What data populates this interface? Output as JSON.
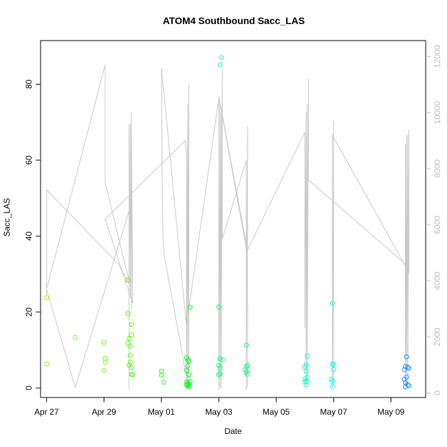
{
  "chart_data": {
    "type": "scatter",
    "title": "ATOM4 Southbound Sacc_LAS",
    "xlabel": "Date",
    "ylabel": "Sacc_LAS",
    "x_unit": "date",
    "xlim": [
      "2025-04-26 19:00",
      "2025-05-10 05:00"
    ],
    "ylim": [
      -2.5,
      91.5
    ],
    "y_ticks": [
      0,
      20,
      40,
      60,
      80
    ],
    "x_ticks": [
      {
        "date": "2025-04-27",
        "label": "Apr 27"
      },
      {
        "date": "2025-04-29",
        "label": "Apr 29"
      },
      {
        "date": "2025-05-01",
        "label": "May 01"
      },
      {
        "date": "2025-05-03",
        "label": "May 03"
      },
      {
        "date": "2025-05-05",
        "label": "May 05"
      },
      {
        "date": "2025-05-07",
        "label": "May 07"
      },
      {
        "date": "2025-05-09",
        "label": "May 09"
      }
    ],
    "y2lim": [
      -160,
      12570
    ],
    "y2_ticks": [
      0,
      2000,
      4000,
      6000,
      8000,
      10000,
      12000
    ],
    "grid": false,
    "legend": "none",
    "points": [
      {
        "x": "2025-04-27 00:00",
        "y": 23.8,
        "color": "#7fff00"
      },
      {
        "x": "2025-04-27 00:00",
        "y": 6.3,
        "color": "#7fff00"
      },
      {
        "x": "2025-04-28 00:00",
        "y": 13.3,
        "color": "#7fff00"
      },
      {
        "x": "2025-04-29 00:00",
        "y": 12.0,
        "color": "#66ff00"
      },
      {
        "x": "2025-04-29 01:00",
        "y": 7.8,
        "color": "#66ff00"
      },
      {
        "x": "2025-04-29 01:00",
        "y": 6.8,
        "color": "#66ff00"
      },
      {
        "x": "2025-04-29 00:00",
        "y": 4.6,
        "color": "#66ff00"
      },
      {
        "x": "2025-04-29 20:00",
        "y": 28.4,
        "color": "#4dff00"
      },
      {
        "x": "2025-04-29 20:00",
        "y": 19.6,
        "color": "#4dff00"
      },
      {
        "x": "2025-04-29 20:00",
        "y": 11.8,
        "color": "#4dff00"
      },
      {
        "x": "2025-04-29 21:00",
        "y": 13.0,
        "color": "#4dff00"
      },
      {
        "x": "2025-04-29 22:00",
        "y": 11.0,
        "color": "#4dff00"
      },
      {
        "x": "2025-04-29 22:00",
        "y": 8.6,
        "color": "#4dff00"
      },
      {
        "x": "2025-04-29 22:00",
        "y": 6.8,
        "color": "#4dff00"
      },
      {
        "x": "2025-04-29 21:00",
        "y": 6.0,
        "color": "#4dff00"
      },
      {
        "x": "2025-04-29 23:00",
        "y": 5.4,
        "color": "#4dff00"
      },
      {
        "x": "2025-04-29 23:00",
        "y": 16.7,
        "color": "#4dff00"
      },
      {
        "x": "2025-04-29 23:00",
        "y": 14.0,
        "color": "#4dff00"
      },
      {
        "x": "2025-04-29 23:00",
        "y": 3.6,
        "color": "#4dff00"
      },
      {
        "x": "2025-04-30 00:00",
        "y": 3.5,
        "color": "#4dff00"
      },
      {
        "x": "2025-05-01 00:00",
        "y": 4.4,
        "color": "#1aff00"
      },
      {
        "x": "2025-05-01 00:00",
        "y": 3.4,
        "color": "#1aff00"
      },
      {
        "x": "2025-05-01 02:00",
        "y": 1.5,
        "color": "#1aff00"
      },
      {
        "x": "2025-05-01 21:00",
        "y": 8.0,
        "color": "#00ff1a"
      },
      {
        "x": "2025-05-01 22:00",
        "y": 7.4,
        "color": "#00ff1a"
      },
      {
        "x": "2025-05-01 23:00",
        "y": 7.0,
        "color": "#00ff1a"
      },
      {
        "x": "2025-05-01 22:00",
        "y": 5.8,
        "color": "#00ff1a"
      },
      {
        "x": "2025-05-01 21:00",
        "y": 4.6,
        "color": "#00ff1a"
      },
      {
        "x": "2025-05-01 23:00",
        "y": 3.5,
        "color": "#00ff1a"
      },
      {
        "x": "2025-05-01 21:00",
        "y": 1.6,
        "color": "#00ff1a"
      },
      {
        "x": "2025-05-01 22:00",
        "y": 1.3,
        "color": "#00ff1a"
      },
      {
        "x": "2025-05-01 23:00",
        "y": 1.0,
        "color": "#00ff1a"
      },
      {
        "x": "2025-05-01 21:00",
        "y": 0.8,
        "color": "#00ff1a"
      },
      {
        "x": "2025-05-01 22:00",
        "y": 0.6,
        "color": "#00ff1a"
      },
      {
        "x": "2025-05-01 23:00",
        "y": 0.4,
        "color": "#00ff1a"
      },
      {
        "x": "2025-05-02 00:00",
        "y": 21.3,
        "color": "#00ff1a"
      },
      {
        "x": "2025-05-02 00:00",
        "y": 1.7,
        "color": "#00ff1a"
      },
      {
        "x": "2025-05-03 00:00",
        "y": 21.3,
        "color": "#00ff66"
      },
      {
        "x": "2025-05-03 00:00",
        "y": 6.0,
        "color": "#00ff66"
      },
      {
        "x": "2025-05-03 01:00",
        "y": 7.7,
        "color": "#00ff66"
      },
      {
        "x": "2025-05-03 03:00",
        "y": 7.4,
        "color": "#00ff66"
      },
      {
        "x": "2025-05-03 01:00",
        "y": 5.3,
        "color": "#00ff66"
      },
      {
        "x": "2025-05-03 00:00",
        "y": 3.5,
        "color": "#00ff66"
      },
      {
        "x": "2025-05-03 01:00",
        "y": 3.8,
        "color": "#00ff66"
      },
      {
        "x": "2025-05-03 02:00",
        "y": 87.0,
        "color": "#00ff99"
      },
      {
        "x": "2025-05-03 01:00",
        "y": 85.1,
        "color": "#00ff99"
      },
      {
        "x": "2025-05-03 23:00",
        "y": 11.3,
        "color": "#00ff66"
      },
      {
        "x": "2025-05-03 23:00",
        "y": 5.6,
        "color": "#00ff66"
      },
      {
        "x": "2025-05-04 00:00",
        "y": 6.0,
        "color": "#00ff66"
      },
      {
        "x": "2025-05-03 22:00",
        "y": 4.8,
        "color": "#00ff66"
      },
      {
        "x": "2025-05-03 23:00",
        "y": 4.2,
        "color": "#00ff66"
      },
      {
        "x": "2025-05-04 00:00",
        "y": 3.6,
        "color": "#00ff66"
      },
      {
        "x": "2025-05-06 02:00",
        "y": 8.4,
        "color": "#00ffcc"
      },
      {
        "x": "2025-05-06 01:00",
        "y": 6.1,
        "color": "#00ffcc"
      },
      {
        "x": "2025-05-06 00:00",
        "y": 5.5,
        "color": "#00ffcc"
      },
      {
        "x": "2025-05-06 01:00",
        "y": 4.4,
        "color": "#00ffcc"
      },
      {
        "x": "2025-05-06 02:00",
        "y": 2.8,
        "color": "#00ffcc"
      },
      {
        "x": "2025-05-06 00:00",
        "y": 2.4,
        "color": "#00ffcc"
      },
      {
        "x": "2025-05-06 01:00",
        "y": 1.9,
        "color": "#00ffcc"
      },
      {
        "x": "2025-05-06 00:00",
        "y": 1.6,
        "color": "#00ffcc"
      },
      {
        "x": "2025-05-06 01:00",
        "y": 0.8,
        "color": "#00ffcc"
      },
      {
        "x": "2025-05-06 23:00",
        "y": 22.3,
        "color": "#00ffee"
      },
      {
        "x": "2025-05-06 23:00",
        "y": 6.3,
        "color": "#00ffee"
      },
      {
        "x": "2025-05-07 00:00",
        "y": 6.2,
        "color": "#00ffee"
      },
      {
        "x": "2025-05-07 00:00",
        "y": 4.9,
        "color": "#00ffee"
      },
      {
        "x": "2025-05-06 22:00",
        "y": 2.3,
        "color": "#00ffee"
      },
      {
        "x": "2025-05-06 23:00",
        "y": 1.8,
        "color": "#00ffee"
      },
      {
        "x": "2025-05-06 23:00",
        "y": 0.4,
        "color": "#00ffee"
      },
      {
        "x": "2025-05-09 13:00",
        "y": 8.2,
        "color": "#1e90ff"
      },
      {
        "x": "2025-05-09 12:00",
        "y": 5.7,
        "color": "#1e90ff"
      },
      {
        "x": "2025-05-09 14:00",
        "y": 5.5,
        "color": "#1e90ff"
      },
      {
        "x": "2025-05-09 15:00",
        "y": 5.2,
        "color": "#1e90ff"
      },
      {
        "x": "2025-05-09 11:00",
        "y": 4.8,
        "color": "#1e90ff"
      },
      {
        "x": "2025-05-09 13:00",
        "y": 2.9,
        "color": "#1e90ff"
      },
      {
        "x": "2025-05-09 11:00",
        "y": 2.3,
        "color": "#1e90ff"
      },
      {
        "x": "2025-05-09 12:00",
        "y": 1.4,
        "color": "#1e90ff"
      },
      {
        "x": "2025-05-09 14:00",
        "y": 0.9,
        "color": "#1e90ff"
      },
      {
        "x": "2025-05-09 15:00",
        "y": 0.6,
        "color": "#1e90ff"
      },
      {
        "x": "2025-05-09 12:00",
        "y": 0.3,
        "color": "#1e90ff"
      }
    ],
    "line2": {
      "color": "#c8c8c8",
      "points": [
        [
          "2025-04-27 00:00",
          3500
        ],
        [
          "2025-04-27 00:00",
          7250
        ],
        [
          "2025-04-29 12:00",
          4600
        ],
        [
          "2025-04-29 21:00",
          3900
        ],
        [
          "2025-04-29 21:00",
          6500
        ],
        [
          "2025-04-28 00:00",
          200
        ],
        [
          "2025-04-27 00:00",
          3700
        ],
        [
          "2025-04-29 01:00",
          11700
        ],
        [
          "2025-04-29 01:00",
          7500
        ],
        [
          "2025-04-29 21:00",
          4000
        ],
        [
          "2025-04-29 21:00",
          100
        ],
        [
          "2025-04-29 21:00",
          9600
        ],
        [
          "2025-04-29 22:00",
          3500
        ],
        [
          "2025-04-29 22:00",
          9600
        ],
        [
          "2025-04-29 23:00",
          3000
        ],
        [
          "2025-04-29 23:00",
          10000
        ],
        [
          "2025-04-30 00:00",
          3200
        ],
        [
          "2025-04-29 01:00",
          6200
        ],
        [
          "2025-05-01 20:00",
          9000
        ],
        [
          "2025-05-01 21:00",
          8500
        ],
        [
          "2025-05-01 21:00",
          100
        ],
        [
          "2025-05-01 22:00",
          10300
        ],
        [
          "2025-05-01 22:00",
          200
        ],
        [
          "2025-05-01 23:00",
          11000
        ],
        [
          "2025-05-01 23:00",
          100
        ],
        [
          "2025-05-01 02:00",
          5000
        ],
        [
          "2025-05-01 01:00",
          6000
        ],
        [
          "2025-05-01 00:00",
          11600
        ],
        [
          "2025-05-01 21:00",
          2400
        ],
        [
          "2025-05-03 00:00",
          10500
        ],
        [
          "2025-05-03 00:00",
          100
        ],
        [
          "2025-05-03 01:00",
          10400
        ],
        [
          "2025-05-03 01:00",
          200
        ],
        [
          "2025-05-03 02:00",
          10000
        ],
        [
          "2025-05-03 02:00",
          150
        ],
        [
          "2025-05-03 03:00",
          11600
        ],
        [
          "2025-05-03 03:00",
          5500
        ],
        [
          "2025-05-03 23:00",
          8300
        ],
        [
          "2025-05-03 23:00",
          100
        ],
        [
          "2025-05-04 00:00",
          9500
        ],
        [
          "2025-05-04 00:00",
          200
        ],
        [
          "2025-05-04 00:00",
          4900
        ],
        [
          "2025-05-03 00:00",
          10600
        ],
        [
          "2025-05-04 00:00",
          5100
        ],
        [
          "2025-05-06 00:00",
          9300
        ],
        [
          "2025-05-06 00:00",
          2300
        ],
        [
          "2025-05-06 01:00",
          10000
        ],
        [
          "2025-05-06 01:00",
          200
        ],
        [
          "2025-05-06 02:00",
          10300
        ],
        [
          "2025-05-06 02:00",
          300
        ],
        [
          "2025-05-06 03:00",
          11200
        ],
        [
          "2025-05-06 03:00",
          7600
        ],
        [
          "2025-05-09 12:00",
          4600
        ],
        [
          "2025-05-09 12:00",
          8900
        ],
        [
          "2025-05-09 12:00",
          100
        ],
        [
          "2025-05-09 13:00",
          9200
        ],
        [
          "2025-05-09 13:00",
          200
        ],
        [
          "2025-05-09 14:00",
          9200
        ],
        [
          "2025-05-09 14:00",
          300
        ],
        [
          "2025-05-09 15:00",
          9400
        ],
        [
          "2025-05-09 15:00",
          5600
        ],
        [
          "2025-05-09 15:00",
          4300
        ],
        [
          "2025-05-06 23:00",
          9200
        ],
        [
          "2025-05-06 23:00",
          200
        ],
        [
          "2025-05-07 00:00",
          9700
        ],
        [
          "2025-05-07 00:00",
          300
        ]
      ]
    }
  }
}
